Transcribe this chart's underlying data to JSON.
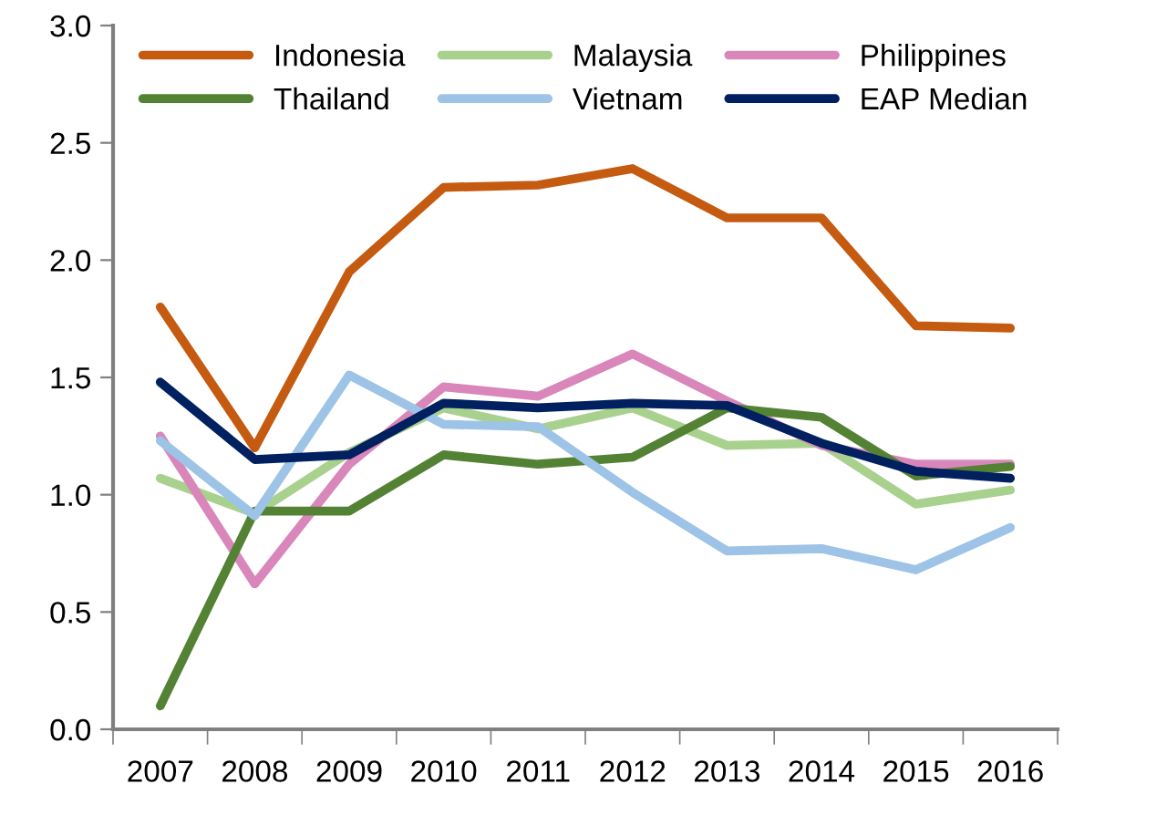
{
  "chart_data": {
    "type": "line",
    "categories": [
      "2007",
      "2008",
      "2009",
      "2010",
      "2011",
      "2012",
      "2013",
      "2014",
      "2015",
      "2016"
    ],
    "ylim": [
      0,
      3
    ],
    "yticks": [
      {
        "value": 0,
        "label": "0.0"
      },
      {
        "value": 0.5,
        "label": "0.5"
      },
      {
        "value": 1,
        "label": "1.0"
      },
      {
        "value": 1.5,
        "label": "1.5"
      },
      {
        "value": 2,
        "label": "2.0"
      },
      {
        "value": 2.5,
        "label": "2.5"
      },
      {
        "value": 3,
        "label": "3.0"
      }
    ],
    "grid": false,
    "legend": "top",
    "marker": "none",
    "line_style": "solid",
    "series": [
      {
        "name": "Indonesia",
        "color": "#c55a11",
        "values": [
          1.8,
          1.2,
          1.95,
          2.31,
          2.32,
          2.39,
          2.18,
          2.18,
          1.72,
          1.71
        ]
      },
      {
        "name": "Malaysia",
        "color": "#a9d18e",
        "values": [
          1.07,
          0.92,
          1.18,
          1.37,
          1.28,
          1.37,
          1.21,
          1.22,
          0.96,
          1.02
        ]
      },
      {
        "name": "Philippines",
        "color": "#d986bb",
        "values": [
          1.25,
          0.62,
          1.13,
          1.46,
          1.42,
          1.6,
          1.4,
          1.21,
          1.13,
          1.13
        ]
      },
      {
        "name": "Thailand",
        "color": "#548235",
        "values": [
          0.1,
          0.93,
          0.93,
          1.17,
          1.13,
          1.16,
          1.37,
          1.33,
          1.08,
          1.12
        ]
      },
      {
        "name": "Vietnam",
        "color": "#9dc3e6",
        "values": [
          1.23,
          0.91,
          1.51,
          1.3,
          1.29,
          1.01,
          0.76,
          0.77,
          0.68,
          0.86
        ]
      },
      {
        "name": "EAP Median",
        "color": "#002060",
        "values": [
          1.48,
          1.15,
          1.17,
          1.39,
          1.37,
          1.39,
          1.38,
          1.22,
          1.1,
          1.07
        ]
      }
    ]
  }
}
